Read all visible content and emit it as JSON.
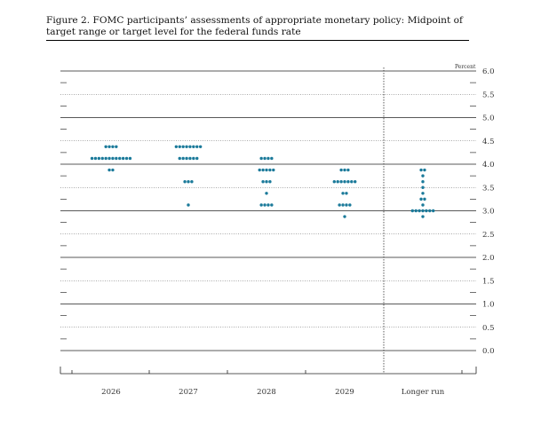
{
  "figure": {
    "title": "Figure 2. FOMC participants’ assessments of appropriate monetary policy: Midpoint of target range or target level for the federal funds rate"
  },
  "chart_data": {
    "type": "scatter",
    "unit_label": "Percent",
    "categories": [
      "2026",
      "2027",
      "2028",
      "2029",
      "Longer run"
    ],
    "ylim": [
      0,
      6
    ],
    "yticks": [
      "0.0",
      "0.5",
      "1.0",
      "1.5",
      "2.0",
      "2.5",
      "3.0",
      "3.5",
      "4.0",
      "4.5",
      "5.0",
      "5.5",
      "6.0"
    ],
    "dot_color": "#1b7a9a",
    "dots": [
      {
        "category": "2026",
        "values": [
          {
            "rate": 4.375,
            "count": 4
          },
          {
            "rate": 4.125,
            "count": 12
          },
          {
            "rate": 3.875,
            "count": 2
          }
        ]
      },
      {
        "category": "2027",
        "values": [
          {
            "rate": 4.375,
            "count": 8
          },
          {
            "rate": 4.125,
            "count": 6
          },
          {
            "rate": 3.625,
            "count": 3
          },
          {
            "rate": 3.125,
            "count": 1
          }
        ]
      },
      {
        "category": "2028",
        "values": [
          {
            "rate": 4.125,
            "count": 4
          },
          {
            "rate": 3.875,
            "count": 5
          },
          {
            "rate": 3.625,
            "count": 3
          },
          {
            "rate": 3.375,
            "count": 1
          },
          {
            "rate": 3.125,
            "count": 4
          }
        ]
      },
      {
        "category": "2029",
        "values": [
          {
            "rate": 3.875,
            "count": 3
          },
          {
            "rate": 3.625,
            "count": 7
          },
          {
            "rate": 3.375,
            "count": 2
          },
          {
            "rate": 3.125,
            "count": 4
          },
          {
            "rate": 2.875,
            "count": 1
          }
        ]
      },
      {
        "category": "Longer run",
        "values": [
          {
            "rate": 3.875,
            "count": 2
          },
          {
            "rate": 3.75,
            "count": 1
          },
          {
            "rate": 3.625,
            "count": 1
          },
          {
            "rate": 3.5,
            "count": 1
          },
          {
            "rate": 3.375,
            "count": 1
          },
          {
            "rate": 3.25,
            "count": 2
          },
          {
            "rate": 3.125,
            "count": 1
          },
          {
            "rate": 3.0,
            "count": 7
          },
          {
            "rate": 2.875,
            "count": 1
          }
        ]
      }
    ],
    "grid": true,
    "separator_before": "Longer run"
  }
}
